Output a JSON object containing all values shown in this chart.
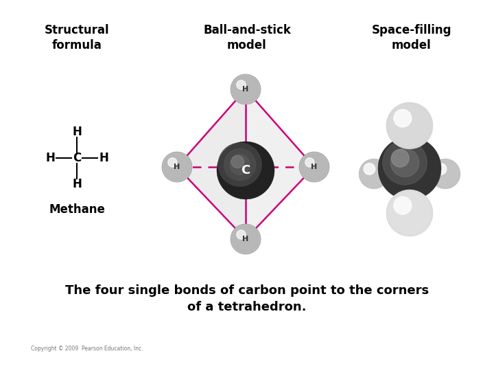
{
  "bg_color": "#ffffff",
  "title_structural": "Structural\nformula",
  "title_ball": "Ball-and-stick\nmodel",
  "title_space": "Space-filling\nmodel",
  "label_methane": "Methane",
  "bottom_text": "The four single bonds of carbon point to the corners\nof a tetrahedron.",
  "copyright": "Copyright © 2009  Pearson Education, Inc.",
  "magenta": "#cc0077",
  "bond_color": "#555555"
}
